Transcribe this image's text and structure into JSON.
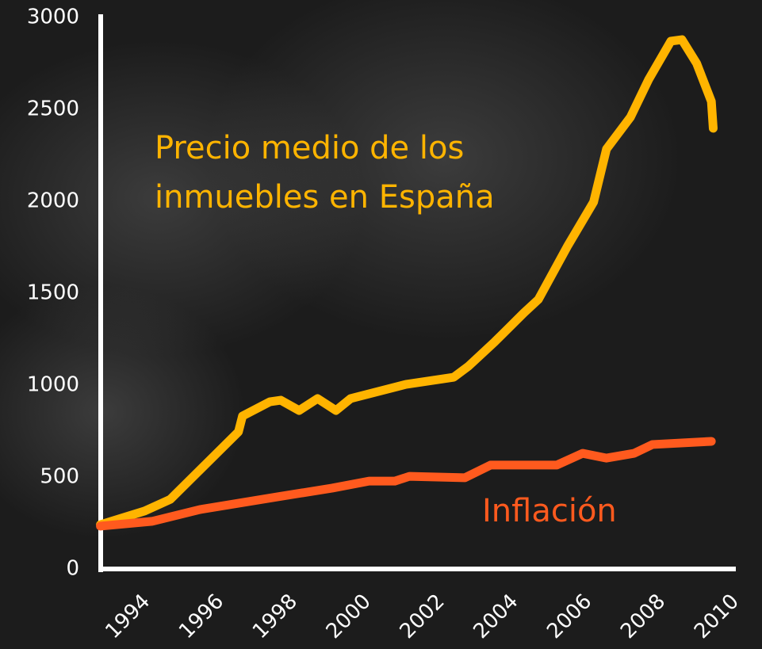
{
  "chart_data": {
    "type": "line",
    "xlim": [
      1992.9,
      2010.2
    ],
    "xticks": [
      1994,
      1996,
      1998,
      2000,
      2002,
      2004,
      2006,
      2008,
      2010
    ],
    "ylim": [
      0,
      3000
    ],
    "yticks": [
      0,
      500,
      1000,
      1500,
      2000,
      2500,
      3000
    ],
    "series": [
      {
        "name": "Precio medio de los inmuebles en España",
        "color": "#ffb400",
        "x": [
          1993.0,
          1994.2,
          1994.9,
          1996.75,
          1996.86,
          1997.6,
          1997.9,
          1998.4,
          1998.9,
          1999.4,
          1999.8,
          2001.3,
          2002.6,
          2003.0,
          2003.7,
          2004.5,
          2004.9,
          2005.7,
          2006.4,
          2006.75,
          2007.4,
          2007.9,
          2008.5,
          2008.8,
          2009.2,
          2009.6,
          2009.65
        ],
        "values": [
          241,
          315,
          379,
          746,
          832,
          909,
          918,
          862,
          927,
          862,
          927,
          1004,
          1043,
          1103,
          1233,
          1392,
          1466,
          1759,
          1996,
          2284,
          2457,
          2664,
          2871,
          2879,
          2750,
          2543,
          2397
        ]
      },
      {
        "name": "Inflación",
        "color": "#ff5a1e",
        "x": [
          1993.0,
          1994.4,
          1995.7,
          1997.8,
          1999.3,
          2000.3,
          2001.0,
          2001.4,
          2002.9,
          2003.6,
          2005.4,
          2006.1,
          2006.75,
          2007.5,
          2008.0,
          2009.6
        ],
        "values": [
          233,
          259,
          323,
          392,
          440,
          478,
          478,
          504,
          496,
          565,
          565,
          629,
          603,
          629,
          677,
          694
        ]
      }
    ]
  }
}
